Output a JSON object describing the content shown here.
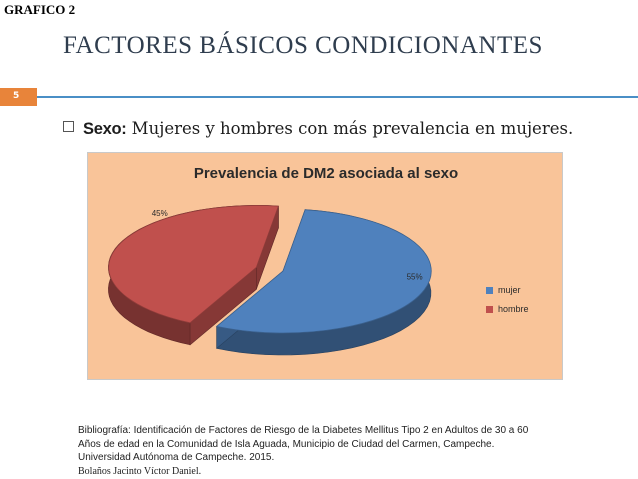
{
  "header": {
    "grafico_label": "GRAFICO 2",
    "title": "FACTORES BÁSICOS CONDICIONANTES",
    "page_number": "5"
  },
  "bullet": {
    "term": "Sexo:",
    "text": " Mujeres y hombres con más prevalencia en mujeres."
  },
  "chart_data": {
    "type": "pie",
    "title": "Prevalencia de DM2 asociada al sexo",
    "categories": [
      "mujer",
      "hombre"
    ],
    "values": [
      55,
      45
    ],
    "value_labels": [
      "55%",
      "45%"
    ],
    "colors": [
      "#4f81bd",
      "#c0504d"
    ],
    "legend_position": "right",
    "background": "#f9c499"
  },
  "reference": {
    "line1": "Bibliografía: Identificación de Factores de Riesgo de la Diabetes Mellitus Tipo 2 en Adultos de 30 a 60",
    "line2": "Años de edad en la Comunidad de Isla Aguada, Municipio de Ciudad del Carmen, Campeche.",
    "line3": "Universidad Autónoma de Campeche. 2015.",
    "line4": "Bolaños Jacinto Víctor Daniel."
  }
}
